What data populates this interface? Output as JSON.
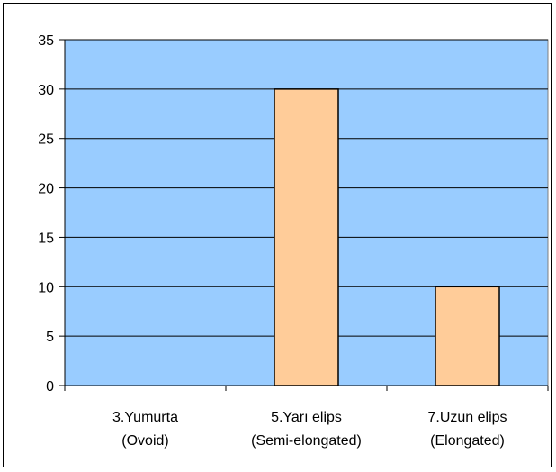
{
  "chart_data": {
    "type": "bar",
    "categories": [
      [
        "3.Yumurta",
        "(Ovoid)"
      ],
      [
        "5.Yarı elips",
        "(Semi-elongated)"
      ],
      [
        "7.Uzun elips",
        "(Elongated)"
      ]
    ],
    "values": [
      0,
      30,
      10
    ],
    "title": "",
    "xlabel": "",
    "ylabel": "",
    "ylim": [
      0,
      35
    ],
    "ytick_step": 5,
    "grid": true,
    "legend": "none",
    "colors": {
      "plot_background": "#99CCFF",
      "bar_fill": "#FFCC99",
      "bar_stroke": "#000000",
      "gridline": "#000000"
    }
  }
}
